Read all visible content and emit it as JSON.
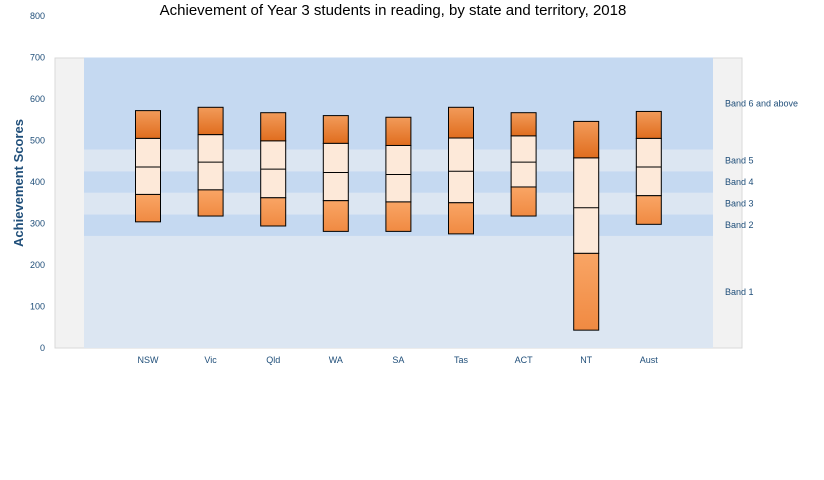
{
  "chart_data": {
    "type": "bar",
    "title": "Achievement of Year 3 students in reading, by state and territory, 2018",
    "ylabel": "Achievement Scores",
    "ylim": [
      0,
      800
    ],
    "yticks": [
      "0",
      "100",
      "200",
      "300",
      "400",
      "500",
      "600",
      "700",
      "800"
    ],
    "categories": [
      "NSW",
      "Vic",
      "Qld",
      "WA",
      "SA",
      "Tas",
      "ACT",
      "NT",
      "Aust"
    ],
    "boxes": [
      {
        "p5": 304,
        "p20": 370,
        "p50": 436,
        "p80": 505,
        "p95": 572
      },
      {
        "p5": 318,
        "p20": 381,
        "p50": 448,
        "p80": 514,
        "p95": 580
      },
      {
        "p5": 294,
        "p20": 362,
        "p50": 431,
        "p80": 499,
        "p95": 567
      },
      {
        "p5": 281,
        "p20": 355,
        "p50": 423,
        "p80": 493,
        "p95": 560
      },
      {
        "p5": 281,
        "p20": 352,
        "p50": 418,
        "p80": 488,
        "p95": 556
      },
      {
        "p5": 275,
        "p20": 350,
        "p50": 426,
        "p80": 506,
        "p95": 580
      },
      {
        "p5": 318,
        "p20": 388,
        "p50": 448,
        "p80": 511,
        "p95": 567
      },
      {
        "p5": 43,
        "p20": 228,
        "p50": 338,
        "p80": 458,
        "p95": 546
      },
      {
        "p5": 298,
        "p20": 367,
        "p50": 436,
        "p80": 505,
        "p95": 570
      }
    ],
    "bands": [
      {
        "label": "Band 1",
        "from": 0,
        "to": 270
      },
      {
        "label": "Band 2",
        "from": 270,
        "to": 322
      },
      {
        "label": "Band 3",
        "from": 322,
        "to": 374
      },
      {
        "label": "Band 4",
        "from": 374,
        "to": 426
      },
      {
        "label": "Band 5",
        "from": 426,
        "to": 478
      },
      {
        "label": "Band 6 and above",
        "from": 478,
        "to": 700
      }
    ],
    "colors": {
      "outer_top": "#e6782c",
      "outer_bottom": "#f59a55",
      "inner": "#fde9d9",
      "band_dark": "#c5d9f1",
      "band_light": "#dce6f2"
    },
    "grid": false,
    "legend": "right"
  }
}
